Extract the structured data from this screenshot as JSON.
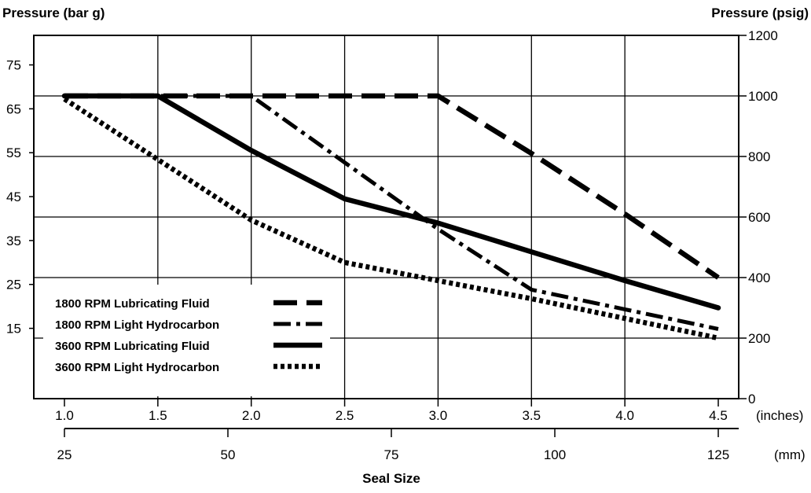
{
  "chart_data": {
    "type": "line",
    "left_axis_title": "Pressure (bar g)",
    "right_axis_title": "Pressure (psig)",
    "xlabel": "Seal Size",
    "x_unit_top": "(inches)",
    "x_unit_bottom": "(mm)",
    "x_ticks_inches": [
      "1.0",
      "1.5",
      "2.0",
      "2.5",
      "3.0",
      "3.5",
      "4.0",
      "4.5"
    ],
    "x_ticks_mm": [
      {
        "value": 25,
        "label": "25"
      },
      {
        "value": 50,
        "label": "50"
      },
      {
        "value": 75,
        "label": "75"
      },
      {
        "value": 100,
        "label": "100"
      },
      {
        "value": 125,
        "label": "125"
      }
    ],
    "y_ticks_psig": [
      "0",
      "200",
      "400",
      "600",
      "800",
      "1000",
      "1200"
    ],
    "y_ticks_bar": [
      "15",
      "25",
      "35",
      "45",
      "55",
      "65",
      "75"
    ],
    "xlim_inches": [
      1.0,
      4.5
    ],
    "ylim_psig": [
      0,
      1200
    ],
    "grid": true,
    "legend_position": "bottom-left",
    "series": [
      {
        "name": "1800 RPM Lubricating Fluid",
        "style": "long-dash",
        "x": [
          1.0,
          1.5,
          2.0,
          2.5,
          3.0,
          3.5,
          4.0,
          4.5
        ],
        "y": [
          1000,
          1000,
          1000,
          1000,
          1000,
          810,
          610,
          400
        ]
      },
      {
        "name": "1800 RPM Light Hydrocarbon",
        "style": "dash-dot",
        "x": [
          1.0,
          1.5,
          2.0,
          2.5,
          3.0,
          3.5,
          4.0,
          4.5
        ],
        "y": [
          1000,
          1000,
          1000,
          780,
          560,
          360,
          295,
          230
        ]
      },
      {
        "name": "3600 RPM Lubricating Fluid",
        "style": "solid",
        "x": [
          1.0,
          1.5,
          2.0,
          2.5,
          3.0,
          3.5,
          4.0,
          4.5
        ],
        "y": [
          1000,
          1000,
          820,
          660,
          580,
          485,
          390,
          300
        ]
      },
      {
        "name": "3600 RPM Light Hydrocarbon",
        "style": "dotted",
        "x": [
          1.0,
          1.5,
          2.0,
          2.5,
          3.0,
          3.5,
          4.0,
          4.5
        ],
        "y": [
          990,
          790,
          590,
          450,
          390,
          330,
          265,
          200
        ]
      }
    ]
  }
}
